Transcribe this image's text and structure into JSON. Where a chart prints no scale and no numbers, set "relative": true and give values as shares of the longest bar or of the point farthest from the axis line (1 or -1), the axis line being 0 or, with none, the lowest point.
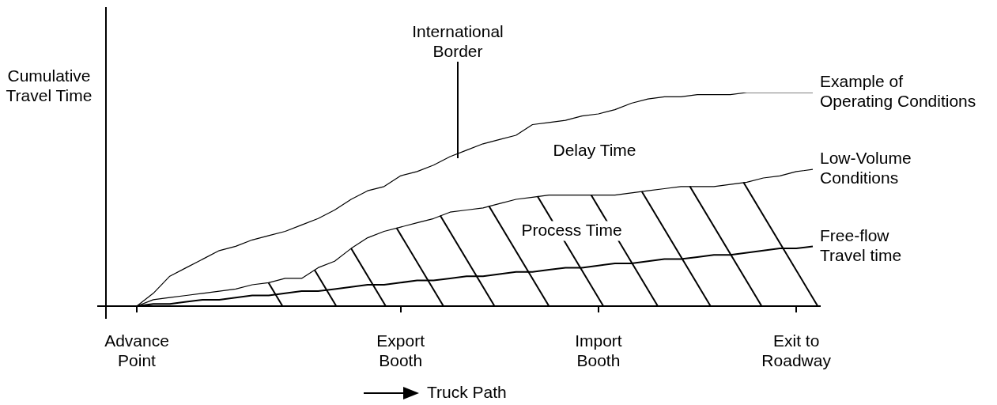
{
  "chart_data": {
    "type": "line",
    "relative": true,
    "marker": "none",
    "ylabel": "Cumulative Travel Time",
    "categories": [
      "Advance Point",
      null,
      null,
      null,
      null,
      null,
      null,
      null,
      null,
      null,
      null,
      null,
      null,
      null,
      null,
      null,
      "Export Booth",
      null,
      null,
      null,
      null,
      null,
      null,
      null,
      null,
      null,
      null,
      null,
      "Import Booth",
      null,
      null,
      null,
      null,
      null,
      null,
      null,
      null,
      null,
      null,
      null,
      "Exit to Roadway",
      null
    ],
    "series": [
      {
        "name": "Example of Operating Conditions",
        "color": "#000000",
        "values": [
          0,
          0.06,
          0.14,
          0.18,
          0.22,
          0.26,
          0.28,
          0.31,
          0.33,
          0.35,
          0.38,
          0.41,
          0.45,
          0.5,
          0.54,
          0.56,
          0.61,
          0.63,
          0.66,
          0.7,
          0.73,
          0.76,
          0.78,
          0.8,
          0.85,
          0.86,
          0.87,
          0.89,
          0.9,
          0.92,
          0.95,
          0.97,
          0.98,
          0.98,
          0.99,
          0.99,
          0.99,
          1,
          1,
          1,
          1,
          1
        ]
      },
      {
        "name": "Low-Volume Conditions",
        "color": "#000000",
        "values": [
          0,
          0.03,
          0.04,
          0.05,
          0.06,
          0.07,
          0.08,
          0.1,
          0.11,
          0.13,
          0.13,
          0.18,
          0.21,
          0.27,
          0.32,
          0.35,
          0.37,
          0.39,
          0.41,
          0.44,
          0.45,
          0.46,
          0.48,
          0.5,
          0.51,
          0.52,
          0.52,
          0.52,
          0.52,
          0.52,
          0.53,
          0.54,
          0.55,
          0.56,
          0.56,
          0.56,
          0.57,
          0.58,
          0.6,
          0.61,
          0.63,
          0.64
        ]
      },
      {
        "name": "Free-flow Travel time",
        "color": "#000000",
        "values": [
          0,
          0.01,
          0.01,
          0.02,
          0.03,
          0.03,
          0.04,
          0.05,
          0.05,
          0.06,
          0.07,
          0.07,
          0.08,
          0.09,
          0.1,
          0.1,
          0.11,
          0.12,
          0.12,
          0.13,
          0.14,
          0.14,
          0.15,
          0.16,
          0.16,
          0.17,
          0.18,
          0.18,
          0.19,
          0.2,
          0.2,
          0.21,
          0.22,
          0.22,
          0.23,
          0.24,
          0.24,
          0.25,
          0.26,
          0.27,
          0.27,
          0.28
        ]
      }
    ],
    "annotations": [
      "International Border",
      "Delay Time",
      "Process Time",
      "Truck Path"
    ]
  }
}
